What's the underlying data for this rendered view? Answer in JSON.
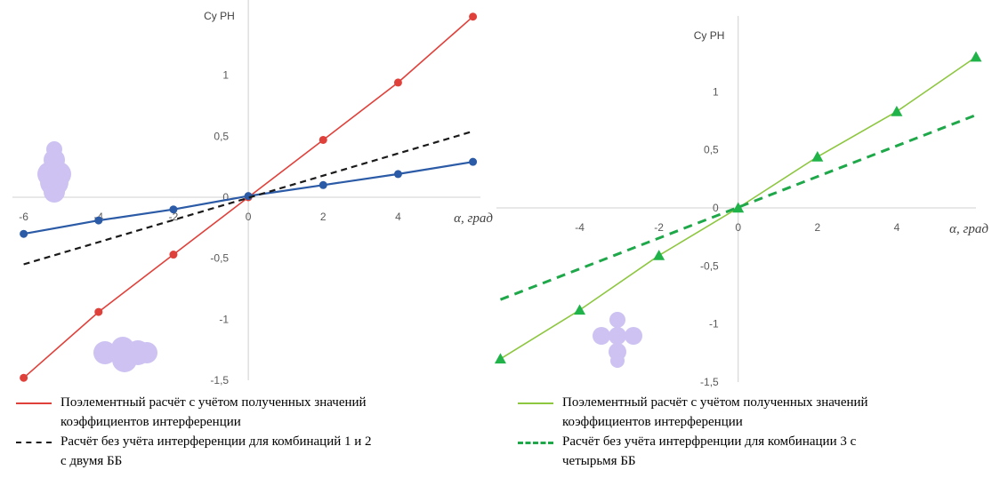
{
  "chart_data": [
    {
      "type": "line",
      "title": "",
      "ylabel": "Cy РН",
      "xlabel": "α, град",
      "xlim": [
        -6.3,
        6.2
      ],
      "ylim": [
        -1.5,
        1.5
      ],
      "x_ticks": [
        "-6",
        "-4",
        "-2",
        "0",
        "2",
        "4"
      ],
      "y_ticks": [
        "1",
        "0,5",
        "0",
        "-0,5",
        "-1",
        "-1,5"
      ],
      "series": [
        {
          "name": "Поэлементный расчёт с учётом полученных значений коэффициентов интерференции",
          "color": "#e0403a",
          "style": "solid-line-circle-markers",
          "x": [
            -6,
            -4,
            -2,
            0,
            2,
            4,
            6
          ],
          "y": [
            -1.48,
            -0.94,
            -0.47,
            0,
            0.47,
            0.94,
            1.48
          ]
        },
        {
          "name": "",
          "color": "#2b5aa6",
          "style": "solid-line-circle-markers",
          "x": [
            -6,
            -4,
            -2,
            0,
            2,
            4,
            6
          ],
          "y": [
            -0.3,
            -0.19,
            -0.1,
            0.01,
            0.1,
            0.19,
            0.29
          ]
        },
        {
          "name": "Расчёт без учёта интерференции для комбинаций 1 и 2 с двумя ББ",
          "color": "#1a1a1a",
          "style": "dashed",
          "x": [
            -6,
            6
          ],
          "y": [
            -0.55,
            0.54
          ]
        }
      ]
    },
    {
      "type": "line",
      "title": "",
      "ylabel": "Cy РН",
      "xlabel": "α, град",
      "xlim": [
        -6.1,
        6.0
      ],
      "ylim": [
        -1.5,
        1.5
      ],
      "x_ticks": [
        "-4",
        "-2",
        "0",
        "2",
        "4"
      ],
      "y_ticks": [
        "1",
        "0,5",
        "0",
        "-0,5",
        "-1",
        "-1,5"
      ],
      "series": [
        {
          "name": "Поэлементный расчёт с учётом полученных значений коэффициентов интерференции",
          "color": "#8dc63f",
          "marker_color": "#1fb34a",
          "style": "solid-line-triangle-markers",
          "x": [
            -6,
            -4,
            -2,
            0,
            2,
            4,
            6
          ],
          "y": [
            -1.3,
            -0.88,
            -0.41,
            0,
            0.44,
            0.83,
            1.3
          ]
        },
        {
          "name": "Расчёт без учёта интерфренции для комбинации 3 с четырьмя ББ",
          "color": "#1fa84a",
          "style": "thick-dashed",
          "x": [
            -6,
            6
          ],
          "y": [
            -0.79,
            0.8
          ]
        }
      ]
    }
  ],
  "legend_left": [
    {
      "line1": "Поэлементный расчёт с учётом полученных значений",
      "line2": "коэффициентов интерференции"
    },
    {
      "line1": "Расчёт без учёта интерференции для комбинаций 1 и 2",
      "line2": "с двумя ББ"
    }
  ],
  "legend_right": [
    {
      "line1": "Поэлементный расчёт с учётом полученных значений",
      "line2": "коэффициентов интерференции"
    },
    {
      "line1": "Расчёт без учёта интерфренции для комбинации 3 с",
      "line2": "четырьмя ББ"
    }
  ],
  "colors": {
    "lavender_shape": "#cdc2f2"
  }
}
